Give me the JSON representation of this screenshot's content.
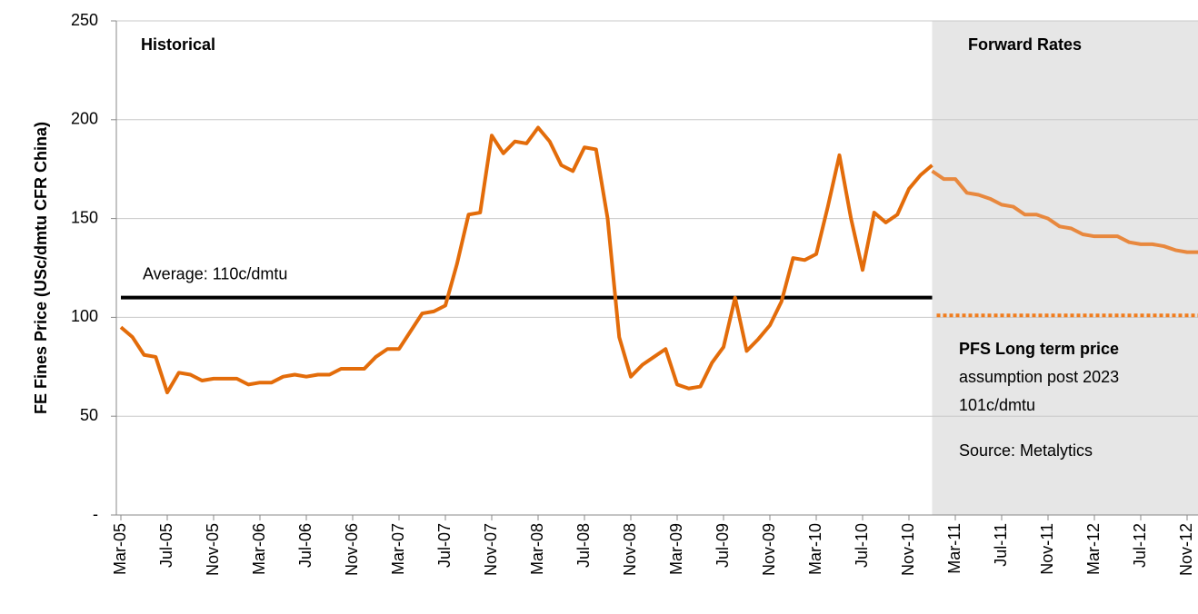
{
  "chart_data": {
    "type": "line",
    "y_label": "FE Fines Price (USc/dmtu CFR China)",
    "categories": [
      "Mar-05",
      null,
      null,
      null,
      "Jul-05",
      null,
      null,
      null,
      "Nov-05",
      null,
      null,
      null,
      "Mar-06",
      null,
      null,
      null,
      "Jul-06",
      null,
      null,
      null,
      "Nov-06",
      null,
      null,
      null,
      "Mar-07",
      null,
      null,
      null,
      "Jul-07",
      null,
      null,
      null,
      "Nov-07",
      null,
      null,
      null,
      "Mar-08",
      null,
      null,
      null,
      "Jul-08",
      null,
      null,
      null,
      "Nov-08",
      null,
      null,
      null,
      "Mar-09",
      null,
      null,
      null,
      "Jul-09",
      null,
      null,
      null,
      "Nov-09",
      null,
      null,
      null,
      "Mar-10",
      null,
      null,
      null,
      "Jul-10",
      null,
      null,
      null,
      "Nov-10",
      null,
      null,
      null,
      "Mar-11",
      null,
      null,
      null,
      "Jul-11",
      null,
      null,
      null,
      "Nov-11",
      null,
      null,
      null,
      "Mar-12",
      null,
      null,
      null,
      "Jul-12",
      null,
      null,
      null,
      "Nov-12",
      null
    ],
    "series": [
      {
        "name": "Historical",
        "color": "#e36c0a",
        "values": [
          95,
          90,
          81,
          80,
          62,
          72,
          71,
          68,
          69,
          69,
          69,
          66,
          67,
          67,
          70,
          71,
          70,
          71,
          71,
          74,
          74,
          74,
          80,
          84,
          84,
          93,
          102,
          103,
          106,
          127,
          152,
          153,
          192,
          183,
          189,
          188,
          196,
          189,
          177,
          174,
          186,
          185,
          150,
          90,
          70,
          76,
          80,
          84,
          66,
          64,
          65,
          77,
          85,
          110,
          83,
          89,
          96,
          108,
          130,
          129,
          132,
          156,
          182,
          150,
          124,
          153,
          148,
          152,
          165,
          172,
          177,
          null,
          null,
          null,
          null,
          null,
          null,
          null,
          null,
          null,
          null,
          null,
          null,
          null,
          null,
          null,
          null,
          null,
          null,
          null,
          null,
          null,
          null,
          null
        ]
      },
      {
        "name": "Forward Rates",
        "color": "#e8883e",
        "values": [
          null,
          null,
          null,
          null,
          null,
          null,
          null,
          null,
          null,
          null,
          null,
          null,
          null,
          null,
          null,
          null,
          null,
          null,
          null,
          null,
          null,
          null,
          null,
          null,
          null,
          null,
          null,
          null,
          null,
          null,
          null,
          null,
          null,
          null,
          null,
          null,
          null,
          null,
          null,
          null,
          null,
          null,
          null,
          null,
          null,
          null,
          null,
          null,
          null,
          null,
          null,
          null,
          null,
          null,
          null,
          null,
          null,
          null,
          null,
          null,
          null,
          null,
          null,
          null,
          null,
          null,
          null,
          null,
          null,
          null,
          174,
          170,
          170,
          163,
          162,
          160,
          157,
          156,
          152,
          152,
          150,
          146,
          145,
          142,
          141,
          141,
          141,
          138,
          137,
          137,
          136,
          134,
          133,
          133
        ]
      }
    ],
    "average": {
      "value": 110,
      "label": "Average: 110c/dmtu"
    },
    "long_term_price": {
      "value": 101,
      "color": "#f07d1e",
      "label_lines": [
        "PFS Long term price",
        "assumption post 2023",
        "101c/dmtu"
      ]
    },
    "source": "Source: Metalytics",
    "ylim": [
      0,
      250
    ],
    "yticks": [
      {
        "value": 0,
        "label": "-"
      },
      50,
      100,
      150,
      200,
      250
    ],
    "grid": true
  }
}
